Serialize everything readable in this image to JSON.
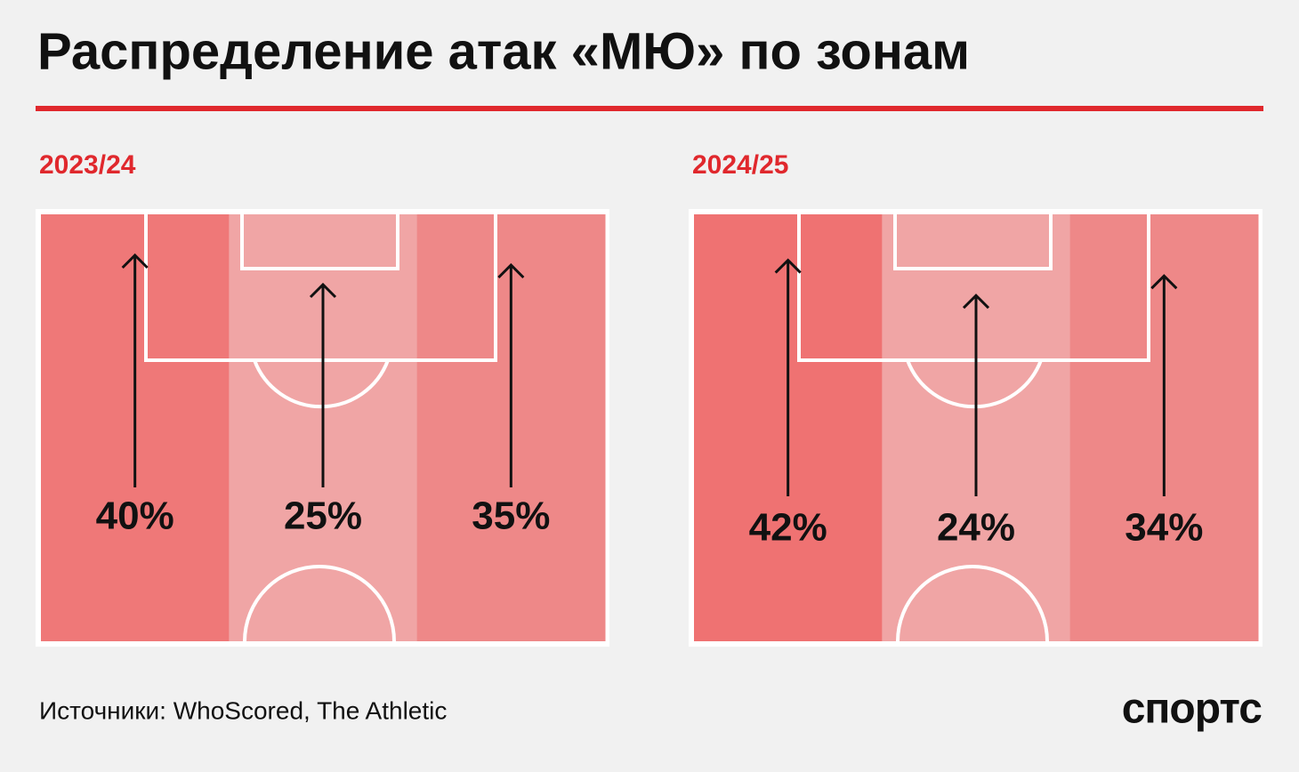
{
  "title": "Распределение атак «МЮ» по зонам",
  "source": "Источники: WhoScored, The Athletic",
  "logo": "спортс",
  "chart_data": [
    {
      "type": "zones",
      "title": "2023/24",
      "values": [
        40,
        25,
        35
      ],
      "value_labels": [
        "40%",
        "25%",
        "35%"
      ],
      "colors": [
        "#ef7878",
        "#f0a5a5",
        "#ee8888"
      ]
    },
    {
      "type": "zones",
      "title": "2024/25",
      "values": [
        42,
        24,
        34
      ],
      "value_labels": [
        "42%",
        "24%",
        "34%"
      ],
      "colors": [
        "#ef7272",
        "#f0a5a5",
        "#ee8888"
      ]
    }
  ]
}
